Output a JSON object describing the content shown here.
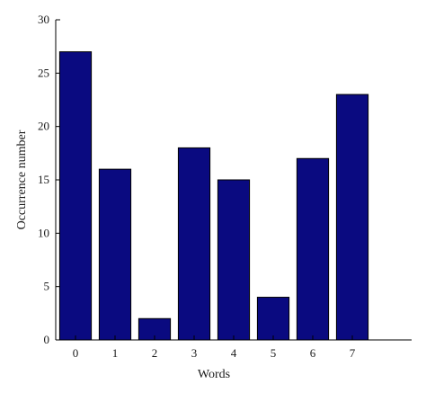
{
  "chart_data": {
    "type": "bar",
    "title": "",
    "xlabel": "Words",
    "ylabel": "Occurrence number",
    "categories": [
      "0",
      "1",
      "2",
      "3",
      "4",
      "5",
      "6",
      "7"
    ],
    "values": [
      27,
      16,
      2,
      18,
      15,
      4,
      17,
      23
    ],
    "ylim": [
      0,
      30
    ],
    "xlim": [
      -0.5,
      8.5
    ],
    "yticks": [
      "0",
      "5",
      "10",
      "15",
      "20",
      "25",
      "30"
    ],
    "grid": false,
    "legend": "none",
    "colors": {
      "bar_fill": "#0a0a80",
      "bar_stroke": "#000000",
      "axis": "#000000"
    }
  }
}
